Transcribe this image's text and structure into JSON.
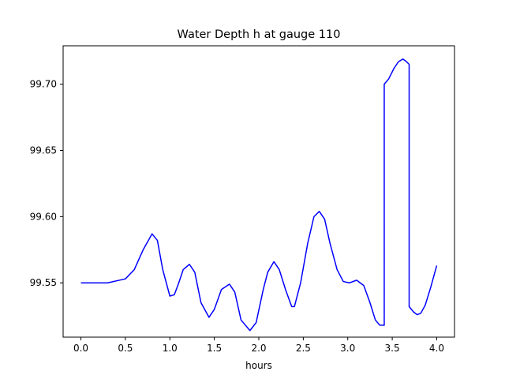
{
  "chart_data": {
    "type": "line",
    "title": "Water Depth h at gauge 110",
    "xlabel": "hours",
    "ylabel": "",
    "xlim": [
      -0.2,
      4.2
    ],
    "ylim": [
      99.509,
      99.729
    ],
    "xticks": [
      0.0,
      0.5,
      1.0,
      1.5,
      2.0,
      2.5,
      3.0,
      3.5,
      4.0
    ],
    "xtick_labels": [
      "0.0",
      "0.5",
      "1.0",
      "1.5",
      "2.0",
      "2.5",
      "3.0",
      "3.5",
      "4.0"
    ],
    "yticks": [
      99.55,
      99.6,
      99.65,
      99.7
    ],
    "ytick_labels": [
      "99.55",
      "99.60",
      "99.65",
      "99.70"
    ],
    "grid": false,
    "line_color": "#0000ff",
    "series": [
      {
        "values": [
          [
            0.0,
            99.55
          ],
          [
            0.3,
            99.55
          ],
          [
            0.5,
            99.553
          ],
          [
            0.6,
            99.56
          ],
          [
            0.7,
            99.575
          ],
          [
            0.8,
            99.587
          ],
          [
            0.86,
            99.582
          ],
          [
            0.92,
            99.56
          ],
          [
            1.0,
            99.54
          ],
          [
            1.05,
            99.541
          ],
          [
            1.1,
            99.55
          ],
          [
            1.15,
            99.56
          ],
          [
            1.22,
            99.564
          ],
          [
            1.28,
            99.558
          ],
          [
            1.35,
            99.535
          ],
          [
            1.44,
            99.524
          ],
          [
            1.5,
            99.53
          ],
          [
            1.58,
            99.545
          ],
          [
            1.67,
            99.549
          ],
          [
            1.73,
            99.543
          ],
          [
            1.8,
            99.522
          ],
          [
            1.9,
            99.514
          ],
          [
            1.97,
            99.52
          ],
          [
            2.05,
            99.545
          ],
          [
            2.1,
            99.558
          ],
          [
            2.17,
            99.566
          ],
          [
            2.23,
            99.56
          ],
          [
            2.3,
            99.545
          ],
          [
            2.37,
            99.532
          ],
          [
            2.4,
            99.532
          ],
          [
            2.47,
            99.55
          ],
          [
            2.55,
            99.58
          ],
          [
            2.62,
            99.6
          ],
          [
            2.68,
            99.604
          ],
          [
            2.74,
            99.598
          ],
          [
            2.8,
            99.58
          ],
          [
            2.88,
            99.56
          ],
          [
            2.95,
            99.551
          ],
          [
            3.02,
            99.55
          ],
          [
            3.1,
            99.552
          ],
          [
            3.18,
            99.548
          ],
          [
            3.25,
            99.535
          ],
          [
            3.31,
            99.522
          ],
          [
            3.36,
            99.518
          ],
          [
            3.41,
            99.518
          ],
          [
            3.41,
            99.7
          ],
          [
            3.46,
            99.704
          ],
          [
            3.52,
            99.712
          ],
          [
            3.57,
            99.717
          ],
          [
            3.62,
            99.719
          ],
          [
            3.66,
            99.717
          ],
          [
            3.69,
            99.715
          ],
          [
            3.69,
            99.532
          ],
          [
            3.74,
            99.528
          ],
          [
            3.78,
            99.526
          ],
          [
            3.82,
            99.527
          ],
          [
            3.87,
            99.533
          ],
          [
            3.93,
            99.546
          ],
          [
            4.0,
            99.563
          ]
        ]
      }
    ]
  }
}
